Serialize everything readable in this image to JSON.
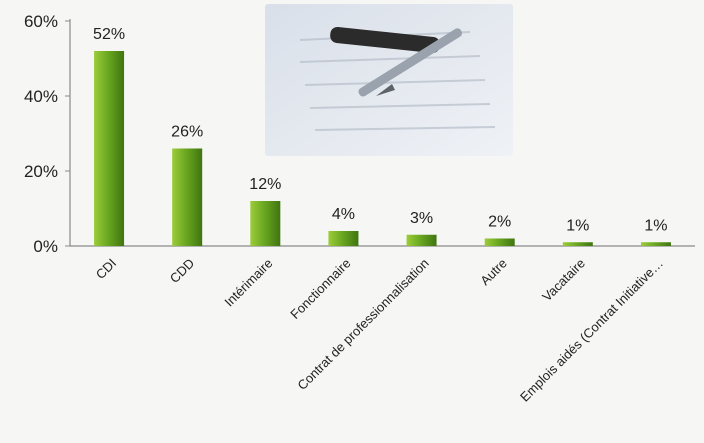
{
  "chart_data": {
    "type": "bar",
    "categories": [
      "CDI",
      "CDD",
      "Intérimaire",
      "Fonctionnaire",
      "Contrat de professionnalisation",
      "Autre",
      "Vacataire",
      "Emplois aidés (Contrat Initiative…"
    ],
    "values": [
      52,
      26,
      12,
      4,
      3,
      2,
      1,
      1
    ],
    "data_labels": [
      "52%",
      "26%",
      "12%",
      "4%",
      "3%",
      "2%",
      "1%",
      "1%"
    ],
    "y_ticks": [
      "0%",
      "20%",
      "40%",
      "60%"
    ],
    "ylim": [
      0,
      60
    ],
    "grid": false,
    "legend": "none",
    "colors": {
      "bar_light": "#9ccc3a",
      "bar_mid": "#6ba821",
      "bar_dark": "#3f7511",
      "axis": "#8a8a8a"
    },
    "background_image": "photo of pen on contract document"
  }
}
